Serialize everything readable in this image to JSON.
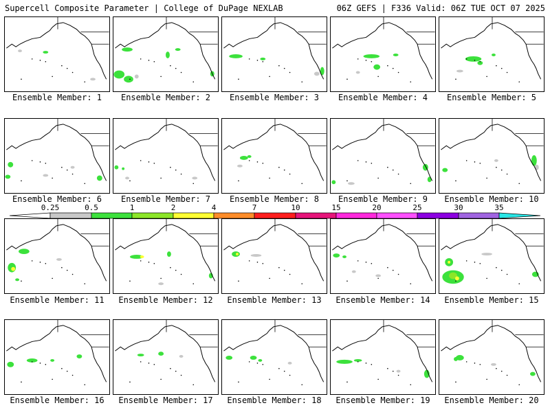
{
  "header": {
    "title": "Supercell Composite Parameter | College of DuPage NEXLAB",
    "valid": "06Z GEFS | F336 Valid: 06Z TUE OCT 07 2025"
  },
  "colorbar": {
    "labels": [
      "0.25",
      "0.5",
      "1",
      "2",
      "4",
      "7",
      "10",
      "15",
      "20",
      "25",
      "30",
      "35"
    ],
    "colors": [
      "#ffffff",
      "#c8c8c8",
      "#3ce13c",
      "#8ce628",
      "#ffff32",
      "#ff8c28",
      "#ff1e1e",
      "#e6147a",
      "#ff28dc",
      "#ff50ff",
      "#8c00e1",
      "#a064e1",
      "#28e6e6"
    ]
  },
  "members": [
    {
      "label": "Ensemble Member: 1"
    },
    {
      "label": "Ensemble Member: 2"
    },
    {
      "label": "Ensemble Member: 3"
    },
    {
      "label": "Ensemble Member: 4"
    },
    {
      "label": "Ensemble Member: 5"
    },
    {
      "label": "Ensemble Member: 6"
    },
    {
      "label": "Ensemble Member: 7"
    },
    {
      "label": "Ensemble Member: 8"
    },
    {
      "label": "Ensemble Member: 9"
    },
    {
      "label": "Ensemble Member: 10"
    },
    {
      "label": "Ensemble Member: 11"
    },
    {
      "label": "Ensemble Member: 12"
    },
    {
      "label": "Ensemble Member: 13"
    },
    {
      "label": "Ensemble Member: 14"
    },
    {
      "label": "Ensemble Member: 15"
    },
    {
      "label": "Ensemble Member: 16"
    },
    {
      "label": "Ensemble Member: 17"
    },
    {
      "label": "Ensemble Member: 18"
    },
    {
      "label": "Ensemble Member: 19"
    },
    {
      "label": "Ensemble Member: 20"
    }
  ]
}
